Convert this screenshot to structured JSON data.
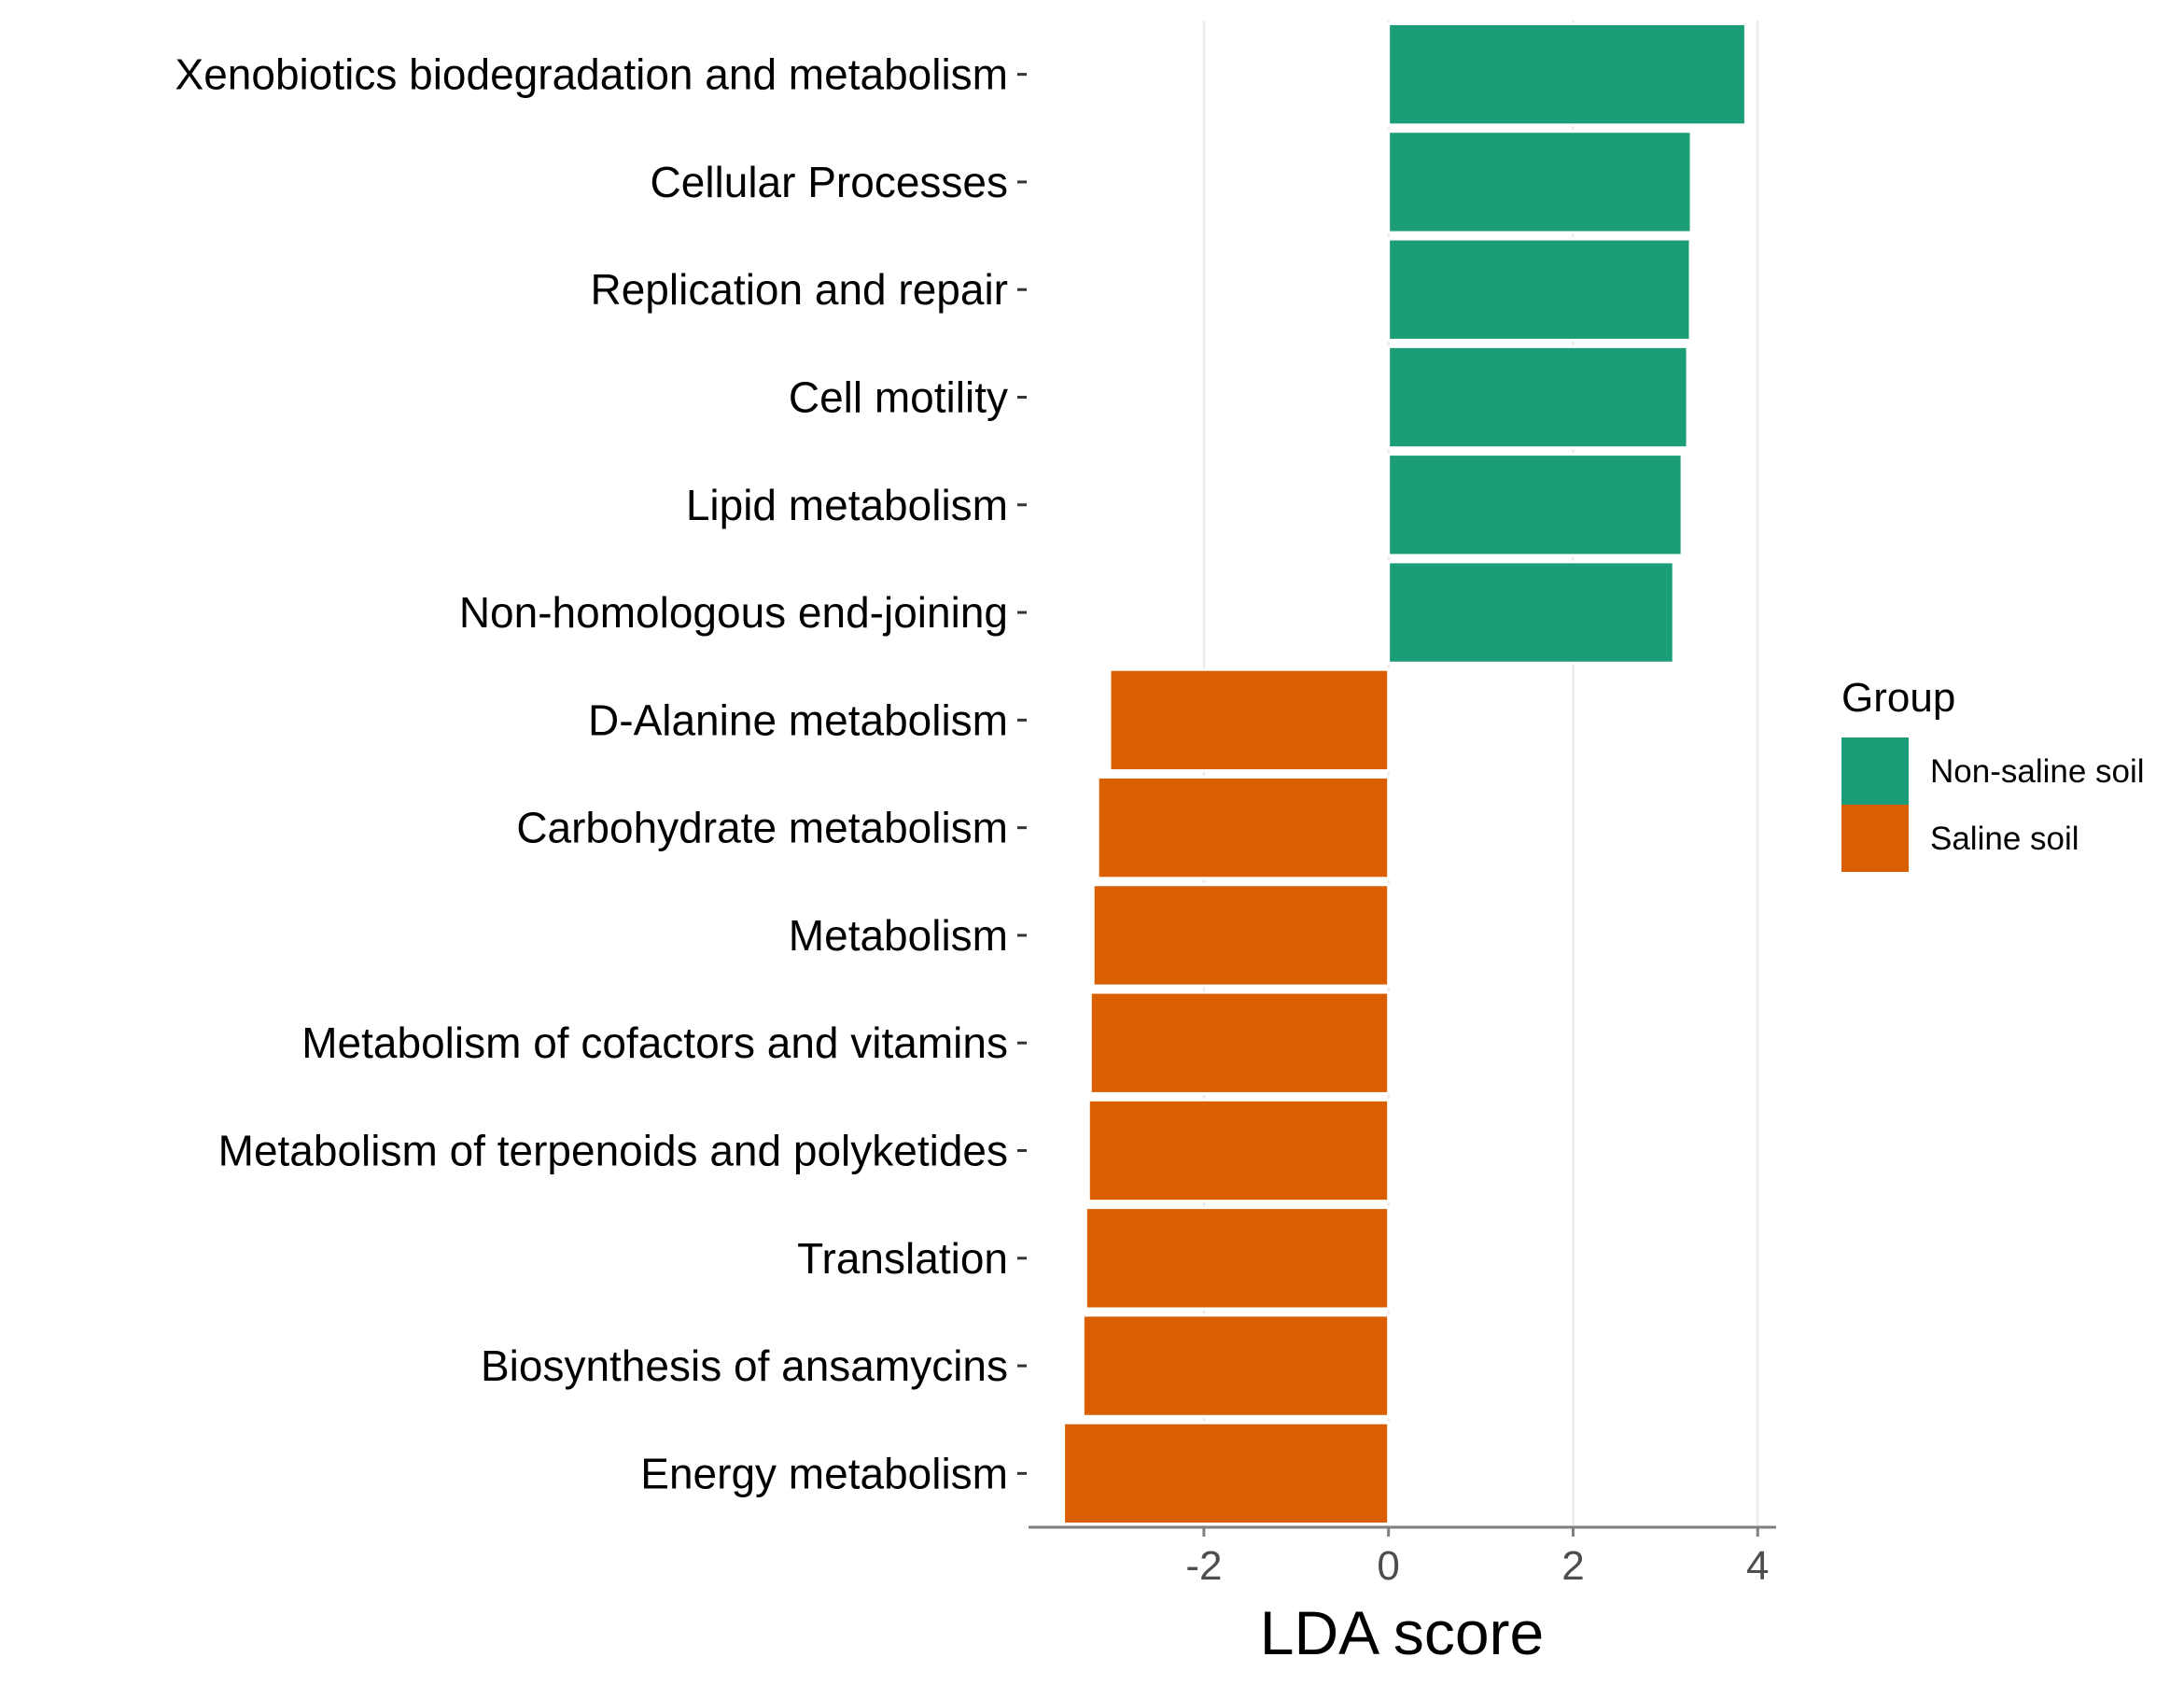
{
  "chart_data": {
    "type": "bar",
    "orientation": "horizontal",
    "xlabel": "LDA score",
    "ylabel": "",
    "xlim": [
      -3.9,
      4.2
    ],
    "x_ticks": [
      -2,
      0,
      2,
      4
    ],
    "x_tick_labels": [
      "-2",
      "0",
      "2",
      "4"
    ],
    "grid": "vertical major gridlines",
    "categories": [
      "Xenobiotics biodegradation and metabolism",
      "Cellular Processes",
      "Replication and repair",
      "Cell motility",
      "Lipid metabolism",
      "Non-homologous end-joining",
      "D-Alanine metabolism",
      "Carbohydrate metabolism",
      "Metabolism",
      "Metabolism of cofactors and vitamins",
      "Metabolism of terpenoids and polyketides",
      "Translation",
      "Biosynthesis of ansamycins",
      "Energy metabolism"
    ],
    "values": [
      3.87,
      3.28,
      3.27,
      3.24,
      3.18,
      3.09,
      -3.02,
      -3.15,
      -3.2,
      -3.23,
      -3.25,
      -3.28,
      -3.31,
      -3.52
    ],
    "groups": [
      "Non-saline soil",
      "Non-saline soil",
      "Non-saline soil",
      "Non-saline soil",
      "Non-saline soil",
      "Non-saline soil",
      "Saline soil",
      "Saline soil",
      "Saline soil",
      "Saline soil",
      "Saline soil",
      "Saline soil",
      "Saline soil",
      "Saline soil"
    ],
    "legend": {
      "title": "Group",
      "position": "right",
      "entries": [
        {
          "name": "Non-saline soil",
          "color": "#1b9e77"
        },
        {
          "name": "Saline soil",
          "color": "#d95f02"
        }
      ]
    }
  }
}
